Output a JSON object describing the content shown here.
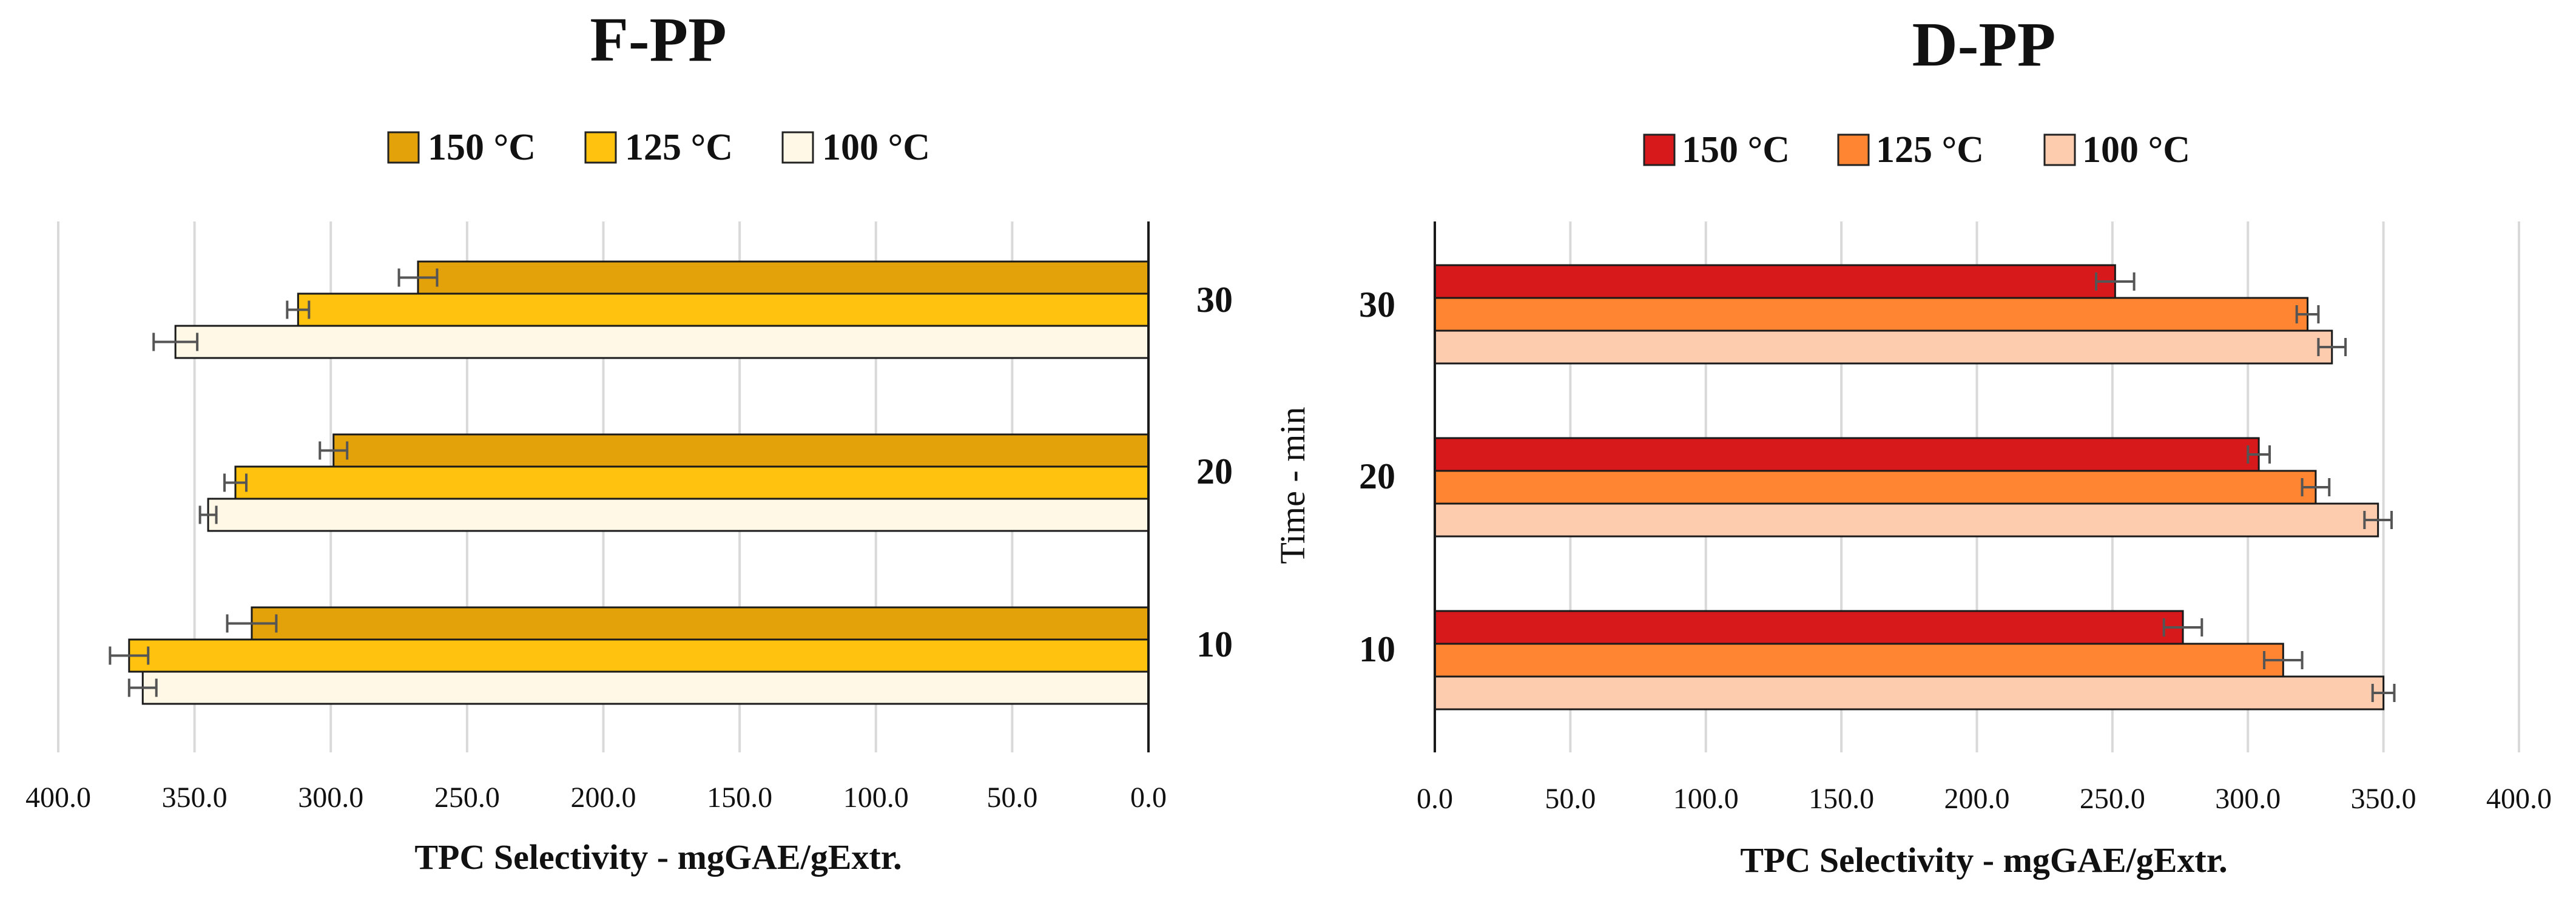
{
  "chart_data": [
    {
      "type": "bar",
      "orientation": "horizontal",
      "title": "F-PP",
      "xlabel": "TPC Selectivity  - mgGAE/gExtr.",
      "ylabel": "",
      "xlim": [
        0,
        400
      ],
      "x_reversed": true,
      "x_ticks": [
        "0.0",
        "50.0",
        "100.0",
        "150.0",
        "200.0",
        "250.0",
        "300.0",
        "350.0",
        "400.0"
      ],
      "categories": [
        "10",
        "20",
        "30"
      ],
      "grid": "vertical",
      "legend_position": "top",
      "series": [
        {
          "name": "150 °C",
          "color": "#E3A10A",
          "values": [
            329,
            299,
            268
          ],
          "errors": [
            9,
            5,
            7
          ]
        },
        {
          "name": "125 °C",
          "color": "#FFC20E",
          "values": [
            374,
            335,
            312
          ],
          "errors": [
            7,
            4,
            4
          ]
        },
        {
          "name": "100 °C",
          "color": "#FFF8E6",
          "values": [
            369,
            345,
            357
          ],
          "errors": [
            5,
            3,
            8
          ]
        }
      ]
    },
    {
      "type": "bar",
      "orientation": "horizontal",
      "title": "D-PP",
      "xlabel": "TPC Selectivity  - mgGAE/gExtr.",
      "ylabel": "Time - min",
      "xlim": [
        0,
        400
      ],
      "x_reversed": false,
      "x_ticks": [
        "0.0",
        "50.0",
        "100.0",
        "150.0",
        "200.0",
        "250.0",
        "300.0",
        "350.0",
        "400.0"
      ],
      "categories": [
        "10",
        "20",
        "30"
      ],
      "grid": "vertical",
      "legend_position": "top",
      "series": [
        {
          "name": "150 °C",
          "color": "#D7191C",
          "values": [
            276,
            304,
            251
          ],
          "errors": [
            7,
            4,
            7
          ]
        },
        {
          "name": "125 °C",
          "color": "#FF8533",
          "values": [
            313,
            325,
            322
          ],
          "errors": [
            7,
            5,
            4
          ]
        },
        {
          "name": "100 °C",
          "color": "#FDCBAE",
          "values": [
            350,
            348,
            331
          ],
          "errors": [
            4,
            5,
            5
          ]
        }
      ]
    }
  ]
}
